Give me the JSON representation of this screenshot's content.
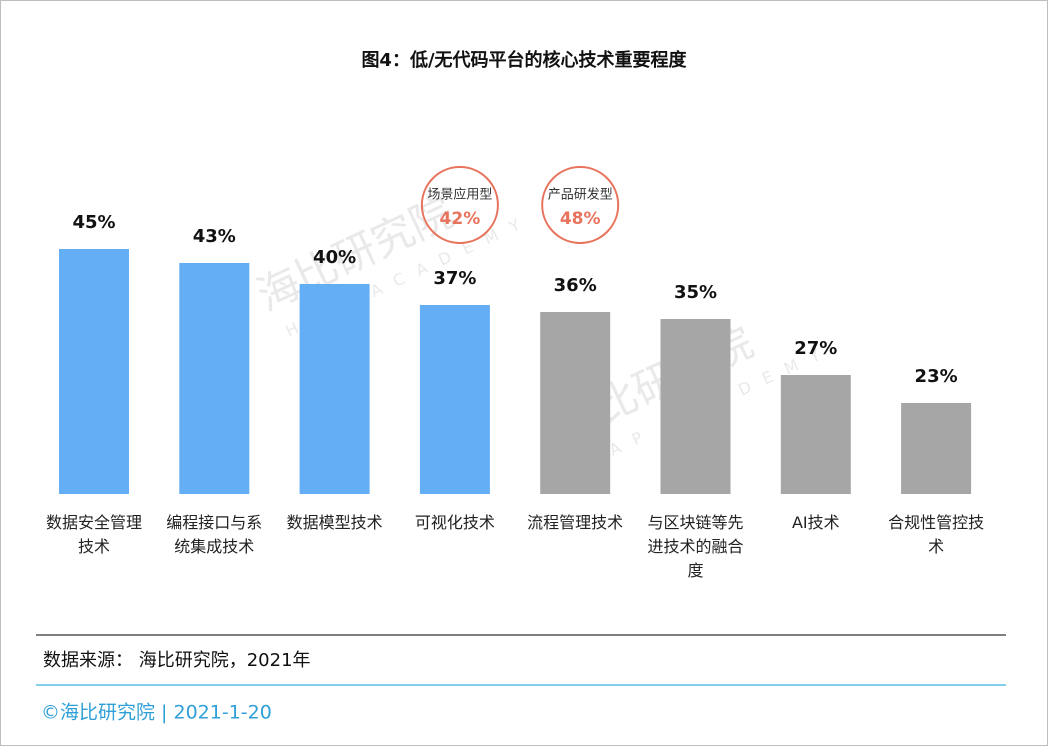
{
  "chart_data": {
    "type": "bar",
    "title": "图4：低/无代码平台的核心技术重要程度",
    "categories": [
      "数据安全管理技术",
      "编程接口与系统集成技术",
      "数据模型技术",
      "可视化技术",
      "流程管理技术",
      "与区块链等先进技术的融合度",
      "AI技术",
      "合规性管控技术"
    ],
    "values": [
      45,
      43,
      40,
      37,
      36,
      35,
      27,
      23
    ],
    "value_labels": [
      "45%",
      "43%",
      "40%",
      "37%",
      "36%",
      "35%",
      "27%",
      "23%"
    ],
    "colors": [
      "#63aef5",
      "#63aef5",
      "#63aef5",
      "#63aef5",
      "#a6a6a6",
      "#a6a6a6",
      "#a6a6a6",
      "#a6a6a6"
    ],
    "ylim": [
      10,
      50
    ],
    "annotations": [
      {
        "text": "场景应用型",
        "value": 42,
        "value_label": "42%"
      },
      {
        "text": "产品研发型",
        "value": 48,
        "value_label": "48%"
      }
    ],
    "watermark": "海比研究院",
    "watermark_sub": "HAP ACADEMY",
    "source": "数据来源： 海比研究院，2021年",
    "footer": "©海比研究院  |  2021-1-20"
  }
}
